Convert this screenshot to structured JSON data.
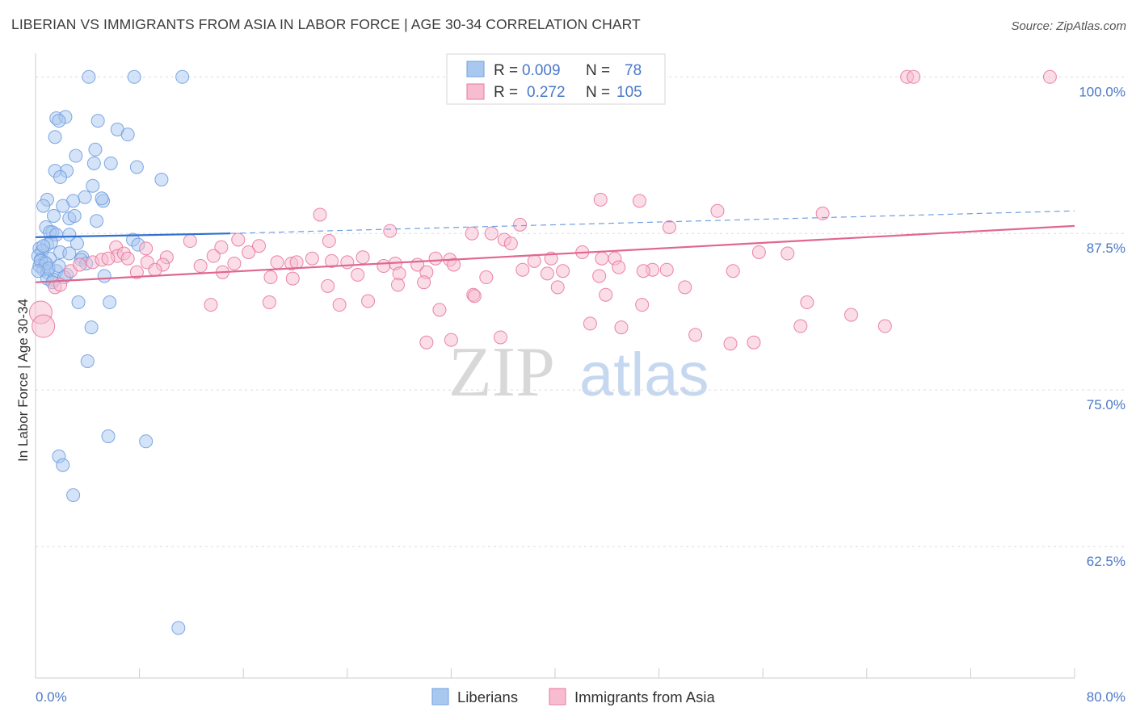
{
  "header": {
    "title": "LIBERIAN VS IMMIGRANTS FROM ASIA IN LABOR FORCE | AGE 30-34 CORRELATION CHART",
    "source": "Source: ZipAtlas.com"
  },
  "watermark": {
    "zip": "ZIP",
    "atlas": "atlas"
  },
  "legend": {
    "rows": [
      {
        "r_label": "R =",
        "r_value": "0.009",
        "n_label": "N =",
        "n_value": "78",
        "color": "#a9c8f0"
      },
      {
        "r_label": "R =",
        "r_value": "0.272",
        "n_label": "N =",
        "n_value": "105",
        "color": "#f7bcd0"
      }
    ]
  },
  "bottom_legend": [
    {
      "label": "Liberians",
      "color": "#a9c8f0"
    },
    {
      "label": "Immigrants from Asia",
      "color": "#f7bcd0"
    }
  ],
  "chart_data": {
    "type": "scatter",
    "title": "LIBERIAN VS IMMIGRANTS FROM ASIA IN LABOR FORCE | AGE 30-34 CORRELATION CHART",
    "xlabel": "",
    "ylabel": "In Labor Force | Age 30-34",
    "xlim": [
      0,
      80
    ],
    "ylim": [
      52,
      101.5
    ],
    "x_tick_labels": [
      "0.0%",
      "80.0%"
    ],
    "y_ticks": [
      62.5,
      75.0,
      87.5,
      100.0
    ],
    "y_tick_labels": [
      "62.5%",
      "75.0%",
      "87.5%",
      "100.0%"
    ],
    "grid": true,
    "legend_position": "top-center",
    "series": [
      {
        "name": "Liberians",
        "color": "#6f9fe0",
        "fill": "#a9c8f0",
        "trend": {
          "x": [
            0,
            15
          ],
          "y": [
            87.2,
            87.5
          ],
          "dashed_to": [
            80,
            89.3
          ]
        },
        "points": [
          [
            4.1,
            100
          ],
          [
            7.6,
            100
          ],
          [
            11.3,
            100
          ],
          [
            1.6,
            96.7
          ],
          [
            2.3,
            96.8
          ],
          [
            1.8,
            96.5
          ],
          [
            4.8,
            96.5
          ],
          [
            6.3,
            95.8
          ],
          [
            7.1,
            95.4
          ],
          [
            1.5,
            95.2
          ],
          [
            4.6,
            94.2
          ],
          [
            3.1,
            93.7
          ],
          [
            4.5,
            93.1
          ],
          [
            5.8,
            93.1
          ],
          [
            1.5,
            92.5
          ],
          [
            2.4,
            92.5
          ],
          [
            7.8,
            92.8
          ],
          [
            9.7,
            91.8
          ],
          [
            1.9,
            92.0
          ],
          [
            4.4,
            91.3
          ],
          [
            0.9,
            90.2
          ],
          [
            2.9,
            90.1
          ],
          [
            3.8,
            90.4
          ],
          [
            5.2,
            90.1
          ],
          [
            5.1,
            90.3
          ],
          [
            0.6,
            89.7
          ],
          [
            2.1,
            89.7
          ],
          [
            1.4,
            88.9
          ],
          [
            2.6,
            88.7
          ],
          [
            3.0,
            88.9
          ],
          [
            4.7,
            88.5
          ],
          [
            0.8,
            88.0
          ],
          [
            1.3,
            87.6
          ],
          [
            1.1,
            87.6
          ],
          [
            1.6,
            87.4
          ],
          [
            2.6,
            87.4
          ],
          [
            7.5,
            87.0
          ],
          [
            0.3,
            86.3
          ],
          [
            0.9,
            86.6
          ],
          [
            1.2,
            86.8
          ],
          [
            3.2,
            86.7
          ],
          [
            7.9,
            86.6
          ],
          [
            0.5,
            86.1
          ],
          [
            1.9,
            86.0
          ],
          [
            2.6,
            85.9
          ],
          [
            3.6,
            85.6
          ],
          [
            0.2,
            85.7
          ],
          [
            0.4,
            85.4
          ],
          [
            0.7,
            85.2
          ],
          [
            1.1,
            85.5
          ],
          [
            3.5,
            85.4
          ],
          [
            0.3,
            84.9
          ],
          [
            0.6,
            84.6
          ],
          [
            0.9,
            84.4
          ],
          [
            1.6,
            84.5
          ],
          [
            0.9,
            83.9
          ],
          [
            1.4,
            83.8
          ],
          [
            2.4,
            84.2
          ],
          [
            5.3,
            84.1
          ],
          [
            1.3,
            83.6
          ],
          [
            3.3,
            82.0
          ],
          [
            5.7,
            82.0
          ],
          [
            4.3,
            80.0
          ],
          [
            4.0,
            77.3
          ],
          [
            5.6,
            71.3
          ],
          [
            8.5,
            70.9
          ],
          [
            1.8,
            69.7
          ],
          [
            2.1,
            69.0
          ],
          [
            2.9,
            66.6
          ],
          [
            11.0,
            56.0
          ],
          [
            0.4,
            85.3
          ],
          [
            0.8,
            85.1
          ],
          [
            1.0,
            84.7
          ],
          [
            0.2,
            84.5
          ],
          [
            0.6,
            86.5
          ],
          [
            1.8,
            84.9
          ],
          [
            2.2,
            84.0
          ],
          [
            3.9,
            85.1
          ]
        ]
      },
      {
        "name": "Immigrants from Asia",
        "color": "#e8779e",
        "fill": "#f7bcd0",
        "trend": {
          "x": [
            0,
            80
          ],
          "y": [
            83.6,
            88.1
          ]
        },
        "points": [
          [
            67.1,
            100
          ],
          [
            67.6,
            100
          ],
          [
            78.1,
            100
          ],
          [
            43.5,
            90.2
          ],
          [
            46.5,
            90.1
          ],
          [
            52.5,
            89.3
          ],
          [
            21.9,
            89.0
          ],
          [
            37.3,
            88.2
          ],
          [
            48.8,
            88.0
          ],
          [
            27.3,
            87.7
          ],
          [
            33.6,
            87.5
          ],
          [
            35.1,
            87.5
          ],
          [
            11.9,
            86.9
          ],
          [
            15.6,
            87.0
          ],
          [
            22.6,
            86.9
          ],
          [
            36.1,
            87.0
          ],
          [
            36.6,
            86.7
          ],
          [
            17.2,
            86.5
          ],
          [
            14.3,
            86.4
          ],
          [
            6.2,
            86.4
          ],
          [
            8.5,
            86.3
          ],
          [
            42.1,
            86.0
          ],
          [
            55.7,
            86.0
          ],
          [
            57.9,
            85.9
          ],
          [
            16.4,
            86.0
          ],
          [
            10.1,
            85.6
          ],
          [
            13.7,
            85.7
          ],
          [
            25.2,
            85.6
          ],
          [
            30.8,
            85.5
          ],
          [
            31.9,
            85.4
          ],
          [
            38.4,
            85.3
          ],
          [
            39.7,
            85.5
          ],
          [
            43.6,
            85.5
          ],
          [
            44.6,
            85.5
          ],
          [
            6.3,
            85.7
          ],
          [
            6.8,
            85.9
          ],
          [
            7.1,
            85.5
          ],
          [
            8.6,
            85.2
          ],
          [
            9.8,
            85.0
          ],
          [
            12.7,
            84.9
          ],
          [
            15.3,
            85.1
          ],
          [
            18.6,
            85.2
          ],
          [
            19.7,
            85.1
          ],
          [
            20.1,
            85.2
          ],
          [
            21.3,
            85.5
          ],
          [
            22.8,
            85.3
          ],
          [
            24.0,
            85.2
          ],
          [
            27.7,
            85.1
          ],
          [
            29.4,
            85.0
          ],
          [
            32.2,
            85.0
          ],
          [
            26.8,
            84.9
          ],
          [
            44.9,
            84.8
          ],
          [
            40.6,
            84.5
          ],
          [
            37.5,
            84.6
          ],
          [
            30.1,
            84.4
          ],
          [
            28.0,
            84.3
          ],
          [
            14.4,
            84.4
          ],
          [
            9.2,
            84.6
          ],
          [
            7.8,
            84.4
          ],
          [
            47.5,
            84.6
          ],
          [
            48.6,
            84.6
          ],
          [
            53.7,
            84.5
          ],
          [
            39.4,
            84.3
          ],
          [
            43.4,
            84.1
          ],
          [
            46.8,
            84.5
          ],
          [
            34.7,
            84.0
          ],
          [
            18.1,
            84.0
          ],
          [
            19.8,
            83.9
          ],
          [
            29.9,
            83.6
          ],
          [
            22.5,
            83.3
          ],
          [
            27.9,
            83.4
          ],
          [
            40.2,
            83.2
          ],
          [
            50.0,
            83.2
          ],
          [
            33.7,
            82.6
          ],
          [
            43.9,
            82.6
          ],
          [
            46.7,
            81.8
          ],
          [
            33.8,
            82.5
          ],
          [
            13.5,
            81.8
          ],
          [
            18.0,
            82.0
          ],
          [
            23.4,
            81.8
          ],
          [
            25.6,
            82.1
          ],
          [
            31.1,
            81.4
          ],
          [
            42.7,
            80.3
          ],
          [
            50.8,
            79.4
          ],
          [
            45.1,
            80.0
          ],
          [
            53.5,
            78.7
          ],
          [
            32.0,
            79.0
          ],
          [
            35.8,
            79.2
          ],
          [
            30.1,
            78.8
          ],
          [
            62.8,
            81.0
          ],
          [
            58.9,
            80.1
          ],
          [
            0.4,
            81.2
          ],
          [
            0.6,
            80.1
          ],
          [
            1.5,
            83.2
          ],
          [
            1.9,
            83.4
          ],
          [
            2.7,
            84.5
          ],
          [
            3.4,
            85.0
          ],
          [
            4.4,
            85.2
          ],
          [
            5.1,
            85.4
          ],
          [
            5.6,
            85.5
          ],
          [
            60.6,
            89.1
          ],
          [
            65.4,
            80.1
          ],
          [
            55.3,
            78.8
          ],
          [
            59.4,
            82.0
          ],
          [
            24.8,
            84.2
          ]
        ]
      }
    ]
  }
}
